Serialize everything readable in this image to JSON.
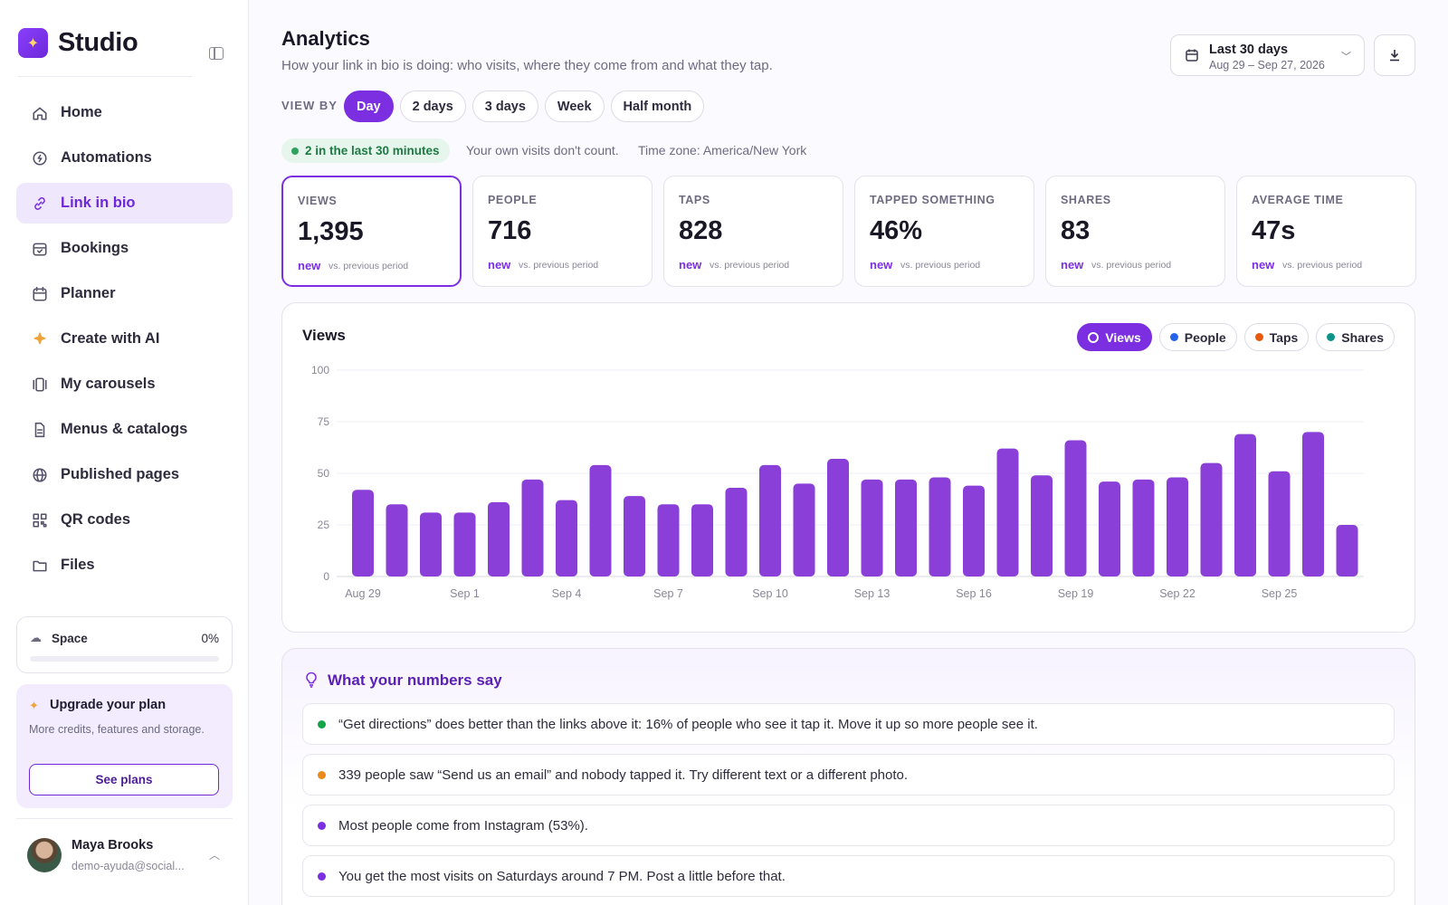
{
  "app": {
    "name": "Studio"
  },
  "sidebar": {
    "items": [
      {
        "label": "Home",
        "icon": "home-icon",
        "active": false
      },
      {
        "label": "Automations",
        "icon": "chat-bolt-icon",
        "active": false
      },
      {
        "label": "Link in bio",
        "icon": "link-icon",
        "active": true
      },
      {
        "label": "Bookings",
        "icon": "calendar-check-icon",
        "active": false
      },
      {
        "label": "Planner",
        "icon": "calendar-icon",
        "active": false
      },
      {
        "label": "Create with AI",
        "icon": "sparkles-icon",
        "active": false
      },
      {
        "label": "My carousels",
        "icon": "carousel-icon",
        "active": false
      },
      {
        "label": "Menus & catalogs",
        "icon": "document-icon",
        "active": false
      },
      {
        "label": "Published pages",
        "icon": "globe-icon",
        "active": false
      },
      {
        "label": "QR codes",
        "icon": "qr-code-icon",
        "active": false
      },
      {
        "label": "Files",
        "icon": "folder-icon",
        "active": false
      }
    ],
    "space": {
      "label": "Space",
      "percent": "0%",
      "fill": 0
    },
    "upgrade": {
      "title": "Upgrade your plan",
      "text": "More credits, features and storage.",
      "button": "See plans"
    },
    "user": {
      "name": "Maya Brooks",
      "email": "demo-ayuda@social..."
    }
  },
  "header": {
    "title": "Analytics",
    "subtitle": "How your link in bio is doing: who visits, where they come from and what they tap.",
    "date_range": {
      "title": "Last 30 days",
      "range": "Aug 29 – Sep 27, 2026"
    }
  },
  "view_by": {
    "label": "VIEW BY",
    "options": [
      "Day",
      "2 days",
      "3 days",
      "Week",
      "Half month"
    ],
    "selected": "Day"
  },
  "status": {
    "live": "2 in the last 30 minutes",
    "note": "Your own visits don't count.",
    "timezone": "Time zone: America/New York"
  },
  "stats": [
    {
      "label": "VIEWS",
      "value": "1,395",
      "delta": "new",
      "compare": "vs. previous period",
      "active": true
    },
    {
      "label": "PEOPLE",
      "value": "716",
      "delta": "new",
      "compare": "vs. previous period",
      "active": false
    },
    {
      "label": "TAPS",
      "value": "828",
      "delta": "new",
      "compare": "vs. previous period",
      "active": false
    },
    {
      "label": "TAPPED SOMETHING",
      "value": "46%",
      "delta": "new",
      "compare": "vs. previous period",
      "active": false
    },
    {
      "label": "SHARES",
      "value": "83",
      "delta": "new",
      "compare": "vs. previous period",
      "active": false
    },
    {
      "label": "AVERAGE TIME",
      "value": "47s",
      "delta": "new",
      "compare": "vs. previous period",
      "active": false
    }
  ],
  "chart": {
    "title": "Views",
    "toggles": [
      {
        "label": "Views",
        "color": "#7b2fe0",
        "active": true
      },
      {
        "label": "People",
        "color": "#2563eb",
        "active": false
      },
      {
        "label": "Taps",
        "color": "#ea580c",
        "active": false
      },
      {
        "label": "Shares",
        "color": "#0d9488",
        "active": false
      }
    ]
  },
  "chart_data": {
    "type": "bar",
    "categories": [
      "Aug 29",
      "Aug 30",
      "Aug 31",
      "Sep 1",
      "Sep 2",
      "Sep 3",
      "Sep 4",
      "Sep 5",
      "Sep 6",
      "Sep 7",
      "Sep 8",
      "Sep 9",
      "Sep 10",
      "Sep 11",
      "Sep 12",
      "Sep 13",
      "Sep 14",
      "Sep 15",
      "Sep 16",
      "Sep 17",
      "Sep 18",
      "Sep 19",
      "Sep 20",
      "Sep 21",
      "Sep 22",
      "Sep 23",
      "Sep 24",
      "Sep 25",
      "Sep 26",
      "Sep 27"
    ],
    "tick_labels": [
      "Aug 29",
      "Sep 1",
      "Sep 4",
      "Sep 7",
      "Sep 10",
      "Sep 13",
      "Sep 16",
      "Sep 19",
      "Sep 22",
      "Sep 25"
    ],
    "series": [
      {
        "name": "Views",
        "color": "#8b3fd9",
        "values": [
          42,
          35,
          31,
          31,
          36,
          47,
          37,
          54,
          39,
          35,
          35,
          43,
          54,
          45,
          57,
          47,
          47,
          48,
          44,
          62,
          49,
          66,
          46,
          47,
          48,
          55,
          69,
          51,
          70,
          25
        ]
      }
    ],
    "ylim": [
      0,
      100
    ],
    "yticks": [
      0,
      25,
      50,
      75,
      100
    ],
    "grid": true
  },
  "insights": {
    "title": "What your numbers say",
    "items": [
      {
        "text": "“Get directions” does better than the links above it: 16% of people who see it tap it. Move it up so more people see it.",
        "color": "#16a34a"
      },
      {
        "text": "339 people saw “Send us an email” and nobody tapped it. Try different text or a different photo.",
        "color": "#ea8a1a"
      },
      {
        "text": "Most people come from Instagram (53%).",
        "color": "#7b2fe0"
      },
      {
        "text": "You get the most visits on Saturdays around 7 PM. Post a little before that.",
        "color": "#7b2fe0"
      }
    ]
  }
}
